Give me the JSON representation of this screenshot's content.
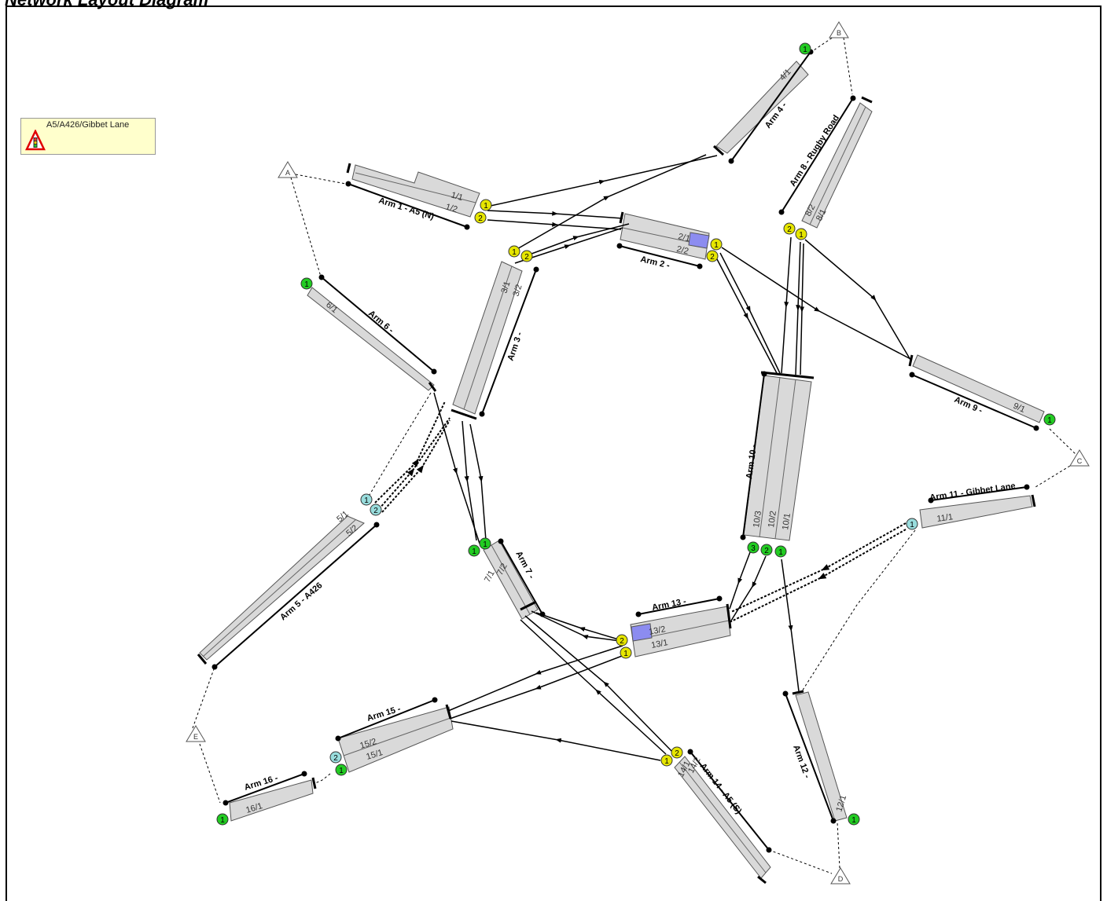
{
  "title": "Network Layout Diagram",
  "legend": {
    "label": "A5/A426/Gibbet Lane",
    "icon": "traffic-signal-warning-icon"
  },
  "colors": {
    "lane_fill": "#d9d9d9",
    "lane_stroke": "#555555",
    "stage_yellow": "#e6e600",
    "stage_cyan": "#99dddd",
    "stage_green": "#22cc22",
    "highlight_blue": "#8c8cf0",
    "node_fill": "#ffffff"
  },
  "nodes": [
    {
      "id": "A"
    },
    {
      "id": "B"
    },
    {
      "id": "C"
    },
    {
      "id": "D"
    },
    {
      "id": "E"
    }
  ],
  "arms": [
    {
      "id": "arm1",
      "label": "Arm 1 - A5 (N)",
      "lanes": [
        "1/1",
        "1/2"
      ]
    },
    {
      "id": "arm2",
      "label": "Arm 2 -",
      "lanes": [
        "2/1",
        "2/2"
      ]
    },
    {
      "id": "arm3",
      "label": "Arm 3 -",
      "lanes": [
        "3/1",
        "3/2"
      ]
    },
    {
      "id": "arm4",
      "label": "Arm 4 -",
      "lanes": [
        "4/1"
      ]
    },
    {
      "id": "arm5",
      "label": "Arm 5 - A426",
      "lanes": [
        "5/1",
        "5/2"
      ]
    },
    {
      "id": "arm6",
      "label": "Arm 6 -",
      "lanes": [
        "6/1"
      ]
    },
    {
      "id": "arm7",
      "label": "Arm 7 -",
      "lanes": [
        "7/1",
        "7/2"
      ]
    },
    {
      "id": "arm8",
      "label": "Arm 8 - Rugby Road",
      "lanes": [
        "8/1",
        "8/2"
      ]
    },
    {
      "id": "arm9",
      "label": "Arm 9 -",
      "lanes": [
        "9/1"
      ]
    },
    {
      "id": "arm10",
      "label": "Arm 10 -",
      "lanes": [
        "10/1",
        "10/2",
        "10/3"
      ]
    },
    {
      "id": "arm11",
      "label": "Arm 11 - Gibbet Lane",
      "lanes": [
        "11/1"
      ]
    },
    {
      "id": "arm12",
      "label": "Arm 12 -",
      "lanes": [
        "12/1"
      ]
    },
    {
      "id": "arm13",
      "label": "Arm 13 -",
      "lanes": [
        "13/1",
        "13/2"
      ]
    },
    {
      "id": "arm14",
      "label": "Arm 14 - A5 (S)",
      "lanes": [
        "14/1",
        "14/2"
      ]
    },
    {
      "id": "arm15",
      "label": "Arm 15 -",
      "lanes": [
        "15/1",
        "15/2"
      ]
    },
    {
      "id": "arm16",
      "label": "Arm 16 -",
      "lanes": [
        "16/1"
      ]
    }
  ],
  "stage_markers": [
    {
      "id": "s1",
      "label": "1",
      "color": "yellow"
    },
    {
      "id": "s2",
      "label": "2",
      "color": "yellow"
    },
    {
      "id": "s3",
      "label": "1",
      "color": "yellow"
    },
    {
      "id": "s4",
      "label": "2",
      "color": "yellow"
    },
    {
      "id": "s5",
      "label": "1",
      "color": "yellow"
    },
    {
      "id": "s6",
      "label": "2",
      "color": "yellow"
    },
    {
      "id": "s7",
      "label": "2",
      "color": "yellow"
    },
    {
      "id": "s8",
      "label": "1",
      "color": "yellow"
    },
    {
      "id": "s9",
      "label": "2",
      "color": "yellow"
    },
    {
      "id": "s10",
      "label": "1",
      "color": "yellow"
    },
    {
      "id": "s11",
      "label": "1",
      "color": "yellow"
    },
    {
      "id": "s12",
      "label": "2",
      "color": "yellow"
    },
    {
      "id": "s13",
      "label": "1",
      "color": "cyan"
    },
    {
      "id": "s14",
      "label": "2",
      "color": "cyan"
    },
    {
      "id": "s15",
      "label": "1",
      "color": "cyan"
    },
    {
      "id": "s16",
      "label": "2",
      "color": "cyan"
    },
    {
      "id": "s17",
      "label": "1",
      "color": "green"
    },
    {
      "id": "s18",
      "label": "1",
      "color": "green"
    },
    {
      "id": "s19",
      "label": "1",
      "color": "green"
    },
    {
      "id": "s20",
      "label": "1",
      "color": "green"
    },
    {
      "id": "s21",
      "label": "1",
      "color": "green"
    },
    {
      "id": "s22",
      "label": "1",
      "color": "green"
    },
    {
      "id": "s23",
      "label": "2",
      "color": "green"
    },
    {
      "id": "s24",
      "label": "3",
      "color": "green"
    },
    {
      "id": "s25",
      "label": "2",
      "color": "green"
    },
    {
      "id": "s26",
      "label": "1",
      "color": "green"
    },
    {
      "id": "s27",
      "label": "1",
      "color": "green"
    },
    {
      "id": "s28",
      "label": "1",
      "color": "green"
    }
  ]
}
